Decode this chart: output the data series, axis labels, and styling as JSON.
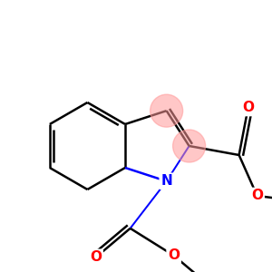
{
  "bg_color": "#ffffff",
  "atom_colors": {
    "N": "#0000ff",
    "O": "#ff0000",
    "C": "#000000"
  },
  "bond_color": "#000000",
  "bond_width": 1.8,
  "highlight_color": "#ff9999",
  "highlight_alpha": 0.55,
  "font_size_atom": 11,
  "scale": 1.0
}
